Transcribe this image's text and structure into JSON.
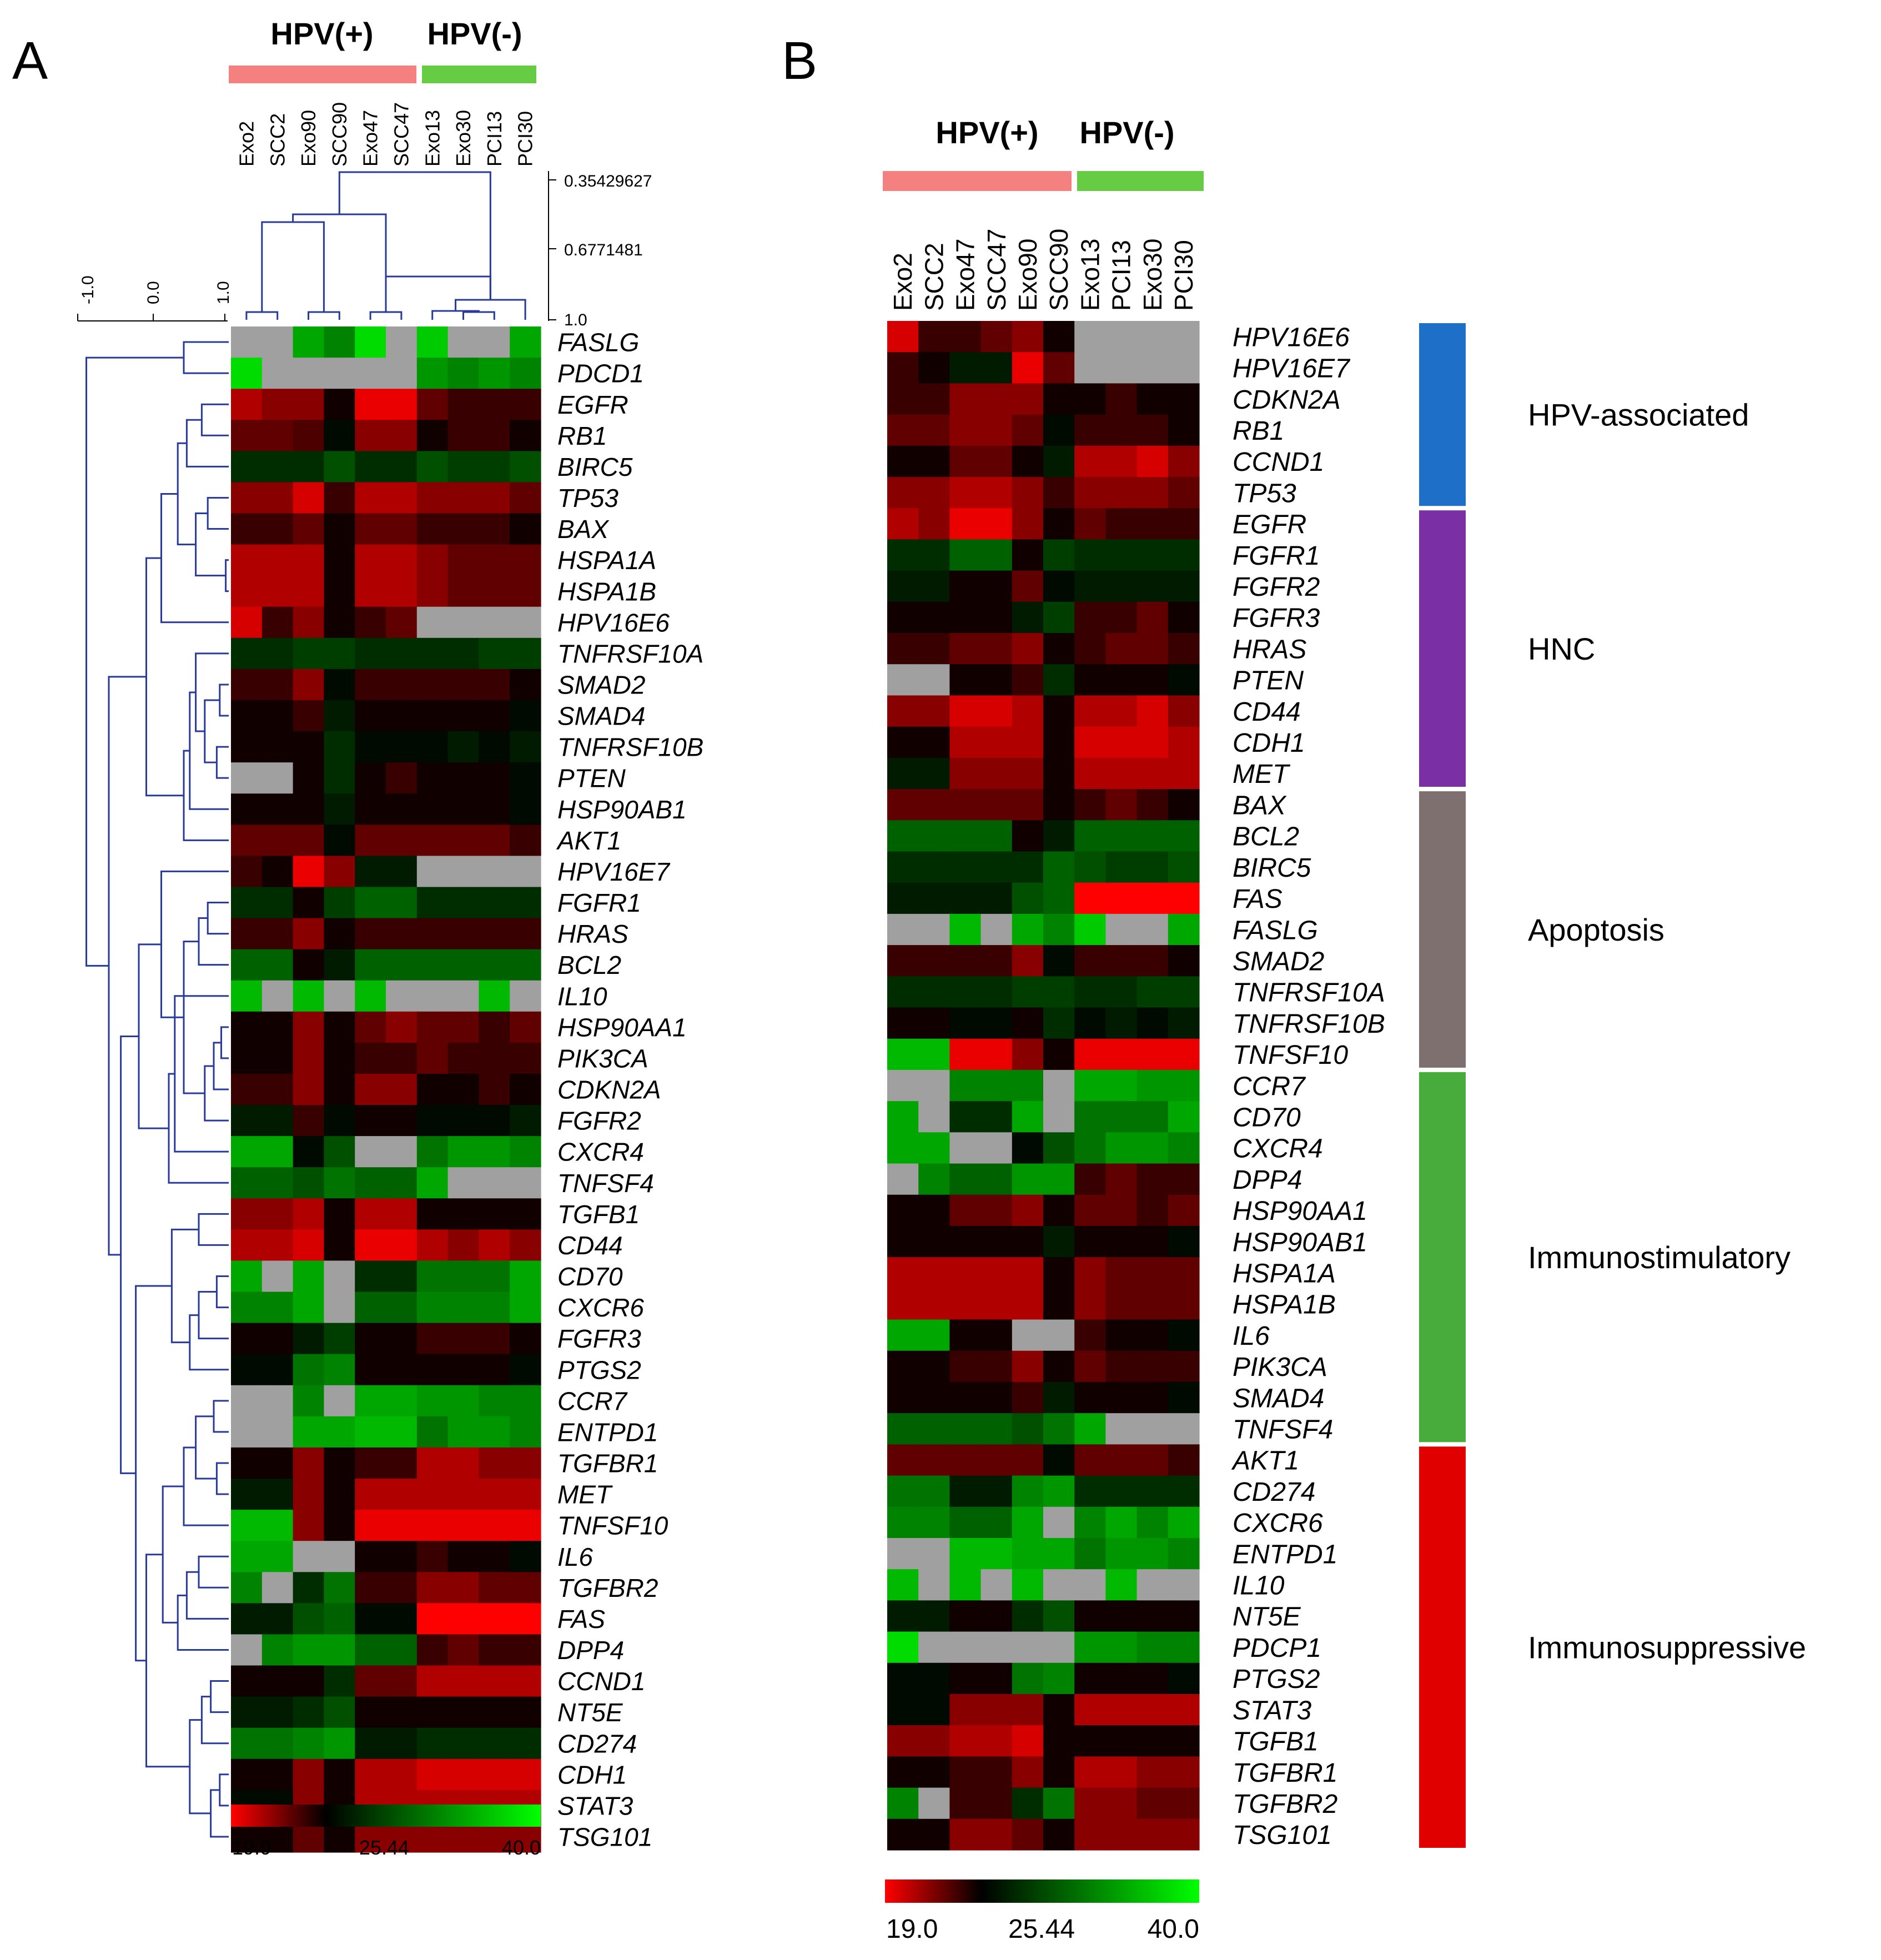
{
  "chart_data": [
    {
      "panel_label": "A",
      "type": "heatmap",
      "group_labels": [
        "HPV(+)",
        "HPV(-)"
      ],
      "group_colors": [
        "#f58080",
        "#66cc44"
      ],
      "group_sizes": [
        6,
        4
      ],
      "columns": [
        "Exo2",
        "SCC2",
        "Exo90",
        "SCC90",
        "Exo47",
        "SCC47",
        "Exo13",
        "Exo30",
        "PCI13",
        "PCI30"
      ],
      "rows": [
        "FASLG",
        "PDCD1",
        "EGFR",
        "RB1",
        "BIRC5",
        "TP53",
        "BAX",
        "HSPA1A",
        "HSPA1B",
        "HPV16E6",
        "TNFRSF10A",
        "SMAD2",
        "SMAD4",
        "TNFRSF10B",
        "PTEN",
        "HSP90AB1",
        "AKT1",
        "HPV16E7",
        "FGFR1",
        "HRAS",
        "BCL2",
        "IL10",
        "HSP90AA1",
        "PIK3CA",
        "CDKN2A",
        "FGFR2",
        "CXCR4",
        "TNFSF4",
        "TGFB1",
        "CD44",
        "CD70",
        "CXCR6",
        "FGFR3",
        "PTGS2",
        "CCR7",
        "ENTPD1",
        "TGFBR1",
        "MET",
        "TNFSF10",
        "IL6",
        "TGFBR2",
        "FAS",
        "DPP4",
        "CCND1",
        "NT5E",
        "CD274",
        "CDH1",
        "STAT3",
        "TSG101"
      ],
      "values": [
        [
          null,
          null,
          35,
          33,
          38,
          null,
          37,
          null,
          null,
          35
        ],
        [
          38,
          null,
          null,
          null,
          null,
          null,
          34,
          33,
          34,
          33
        ],
        [
          21,
          22,
          22,
          25,
          19.5,
          19.5,
          23,
          24,
          24,
          24
        ],
        [
          23,
          23,
          23.5,
          26,
          22,
          22,
          25,
          24,
          24,
          25
        ],
        [
          28,
          28,
          28,
          30,
          28,
          28,
          30,
          29,
          29,
          30
        ],
        [
          22,
          22,
          20,
          24,
          21,
          21,
          22,
          22,
          22,
          23
        ],
        [
          24,
          24,
          23,
          25,
          23,
          23,
          24,
          24,
          24,
          25
        ],
        [
          21,
          21,
          21,
          25,
          21,
          21,
          22,
          23,
          23,
          23
        ],
        [
          21,
          21,
          21,
          25,
          21,
          21,
          22,
          23,
          23,
          23
        ],
        [
          20,
          24,
          22,
          25,
          24,
          23,
          null,
          null,
          null,
          null
        ],
        [
          28,
          28,
          29,
          29,
          28,
          28,
          28,
          28,
          29,
          29
        ],
        [
          24,
          24,
          22,
          26,
          24,
          24,
          24,
          24,
          24,
          25
        ],
        [
          25,
          25,
          24,
          27,
          25,
          25,
          25,
          25,
          25,
          26
        ],
        [
          25,
          25,
          25,
          28,
          26,
          26,
          26,
          27,
          26,
          27
        ],
        [
          null,
          null,
          25,
          28,
          25,
          24,
          25,
          25,
          25,
          26
        ],
        [
          25,
          25,
          25,
          27,
          25,
          25,
          25,
          25,
          25,
          26
        ],
        [
          23,
          23,
          23,
          26,
          23,
          23,
          23,
          23,
          23,
          24
        ],
        [
          24,
          25,
          19.5,
          22,
          27,
          27,
          null,
          null,
          null,
          null
        ],
        [
          28,
          28,
          25,
          29,
          31,
          31,
          28,
          28,
          28,
          28
        ],
        [
          24,
          24,
          22,
          25,
          24,
          24,
          24,
          24,
          24,
          24
        ],
        [
          31,
          31,
          25,
          27,
          31,
          31,
          31,
          31,
          31,
          31
        ],
        [
          36,
          null,
          36,
          null,
          36,
          null,
          null,
          null,
          36,
          null
        ],
        [
          25,
          25,
          22,
          25,
          23,
          22,
          23,
          23,
          24,
          23
        ],
        [
          25,
          25,
          22,
          25,
          24,
          24,
          23,
          24,
          24,
          24
        ],
        [
          24,
          24,
          22,
          25,
          22,
          22,
          25,
          25,
          24,
          25
        ],
        [
          27,
          27,
          24,
          26,
          25,
          25,
          26,
          26,
          26,
          27
        ],
        [
          35,
          35,
          26,
          30,
          null,
          null,
          32,
          34,
          34,
          33
        ],
        [
          31,
          31,
          30,
          32,
          31,
          31,
          35,
          null,
          null,
          null
        ],
        [
          22,
          22,
          21,
          25,
          21,
          21,
          25,
          25,
          25,
          25
        ],
        [
          21,
          21,
          20,
          25,
          19.5,
          19.5,
          21,
          22,
          21,
          22
        ],
        [
          35,
          null,
          35,
          null,
          28,
          28,
          32,
          32,
          32,
          35
        ],
        [
          33,
          33,
          35,
          null,
          31,
          31,
          33,
          33,
          33,
          35
        ],
        [
          25,
          25,
          27,
          29,
          25,
          25,
          24,
          24,
          24,
          25
        ],
        [
          26,
          26,
          32,
          33,
          25,
          25,
          25,
          25,
          25,
          26
        ],
        [
          null,
          null,
          33,
          null,
          35,
          35,
          34,
          34,
          33,
          33
        ],
        [
          null,
          null,
          35,
          35,
          36,
          36,
          32,
          34,
          34,
          33
        ],
        [
          25,
          25,
          22,
          25,
          24,
          24,
          21,
          21,
          22,
          22
        ],
        [
          27,
          27,
          22,
          25,
          21,
          21,
          21,
          21,
          21,
          21
        ],
        [
          36,
          36,
          22,
          25,
          19.5,
          19.5,
          19.5,
          19.5,
          19.5,
          19.5
        ],
        [
          35,
          35,
          null,
          null,
          25,
          25,
          24,
          25,
          25,
          26
        ],
        [
          33,
          null,
          28,
          32,
          24,
          24,
          22,
          22,
          23,
          23
        ],
        [
          27,
          27,
          30,
          31,
          26,
          26,
          19,
          19,
          19,
          19
        ],
        [
          null,
          33,
          34,
          34,
          31,
          31,
          24,
          23,
          24,
          24
        ],
        [
          25,
          25,
          25,
          28,
          23,
          23,
          21,
          21,
          21,
          21
        ],
        [
          27,
          27,
          28,
          30,
          25,
          25,
          25,
          25,
          25,
          25
        ],
        [
          32,
          32,
          33,
          34,
          27,
          27,
          28,
          28,
          28,
          28
        ],
        [
          25,
          25,
          22,
          25,
          21,
          21,
          20,
          20,
          20,
          20
        ],
        [
          26,
          26,
          22,
          25,
          21,
          21,
          21,
          21,
          21,
          21
        ],
        [
          25,
          25,
          23,
          25,
          22,
          22,
          22,
          22,
          22,
          22
        ]
      ],
      "column_distance_ticks": [
        "0.35429627",
        "0.6771481",
        "1.0"
      ],
      "row_distance_ticks": [
        "-1.0",
        "0.0",
        "1.0"
      ],
      "color_scale": {
        "min": 19.0,
        "mid": 25.44,
        "max": 40.0,
        "low_color": "#ff0000",
        "mid_color": "#000000",
        "high_color": "#00ff00",
        "missing_color": "#a0a0a0"
      },
      "color_scale_labels": [
        "19.0",
        "25.44",
        "40.0"
      ]
    },
    {
      "panel_label": "B",
      "type": "heatmap",
      "group_labels": [
        "HPV(+)",
        "HPV(-)"
      ],
      "group_colors": [
        "#f58080",
        "#66cc44"
      ],
      "group_sizes": [
        6,
        4
      ],
      "columns": [
        "Exo2",
        "SCC2",
        "Exo47",
        "SCC47",
        "Exo90",
        "SCC90",
        "Exo13",
        "PCI13",
        "Exo30",
        "PCI30"
      ],
      "rows": [
        "HPV16E6",
        "HPV16E7",
        "CDKN2A",
        "RB1",
        "CCND1",
        "TP53",
        "EGFR",
        "FGFR1",
        "FGFR2",
        "FGFR3",
        "HRAS",
        "PTEN",
        "CD44",
        "CDH1",
        "MET",
        "BAX",
        "BCL2",
        "BIRC5",
        "FAS",
        "FASLG",
        "SMAD2",
        "TNFRSF10A",
        "TNFRSF10B",
        "TNFSF10",
        "CCR7",
        "CD70",
        "CXCR4",
        "DPP4",
        "HSP90AA1",
        "HSP90AB1",
        "HSPA1A",
        "HSPA1B",
        "IL6",
        "PIK3CA",
        "SMAD4",
        "TNFSF4",
        "AKT1",
        "CD274",
        "CXCR6",
        "ENTPD1",
        "IL10",
        "NT5E",
        "PDCP1",
        "PTGS2",
        "STAT3",
        "TGFB1",
        "TGFBR1",
        "TGFBR2",
        "TSG101"
      ],
      "values": [
        [
          20,
          24,
          24,
          23,
          22,
          25,
          null,
          null,
          null,
          null
        ],
        [
          24,
          25,
          27,
          27,
          19.5,
          23,
          null,
          null,
          null,
          null
        ],
        [
          24,
          24,
          22,
          22,
          22,
          25,
          25,
          24,
          25,
          25
        ],
        [
          23,
          23,
          22,
          22,
          23,
          26,
          24,
          24,
          24,
          25
        ],
        [
          25,
          25,
          23,
          23,
          25,
          27,
          21,
          21,
          20,
          22
        ],
        [
          22,
          22,
          21,
          21,
          22,
          24,
          22,
          22,
          22,
          23
        ],
        [
          21,
          22,
          19.5,
          19.5,
          22,
          25,
          23,
          24,
          24,
          24
        ],
        [
          28,
          28,
          31,
          31,
          25,
          29,
          28,
          28,
          28,
          28
        ],
        [
          27,
          27,
          25,
          25,
          23,
          26,
          27,
          27,
          27,
          27
        ],
        [
          25,
          25,
          25,
          25,
          27,
          29,
          24,
          24,
          23,
          25
        ],
        [
          24,
          24,
          23,
          23,
          22,
          25,
          24,
          23,
          23,
          24
        ],
        [
          null,
          null,
          25,
          25,
          24,
          28,
          25,
          25,
          25,
          26
        ],
        [
          22,
          22,
          20,
          20,
          21,
          25,
          21,
          21,
          20,
          22
        ],
        [
          25,
          25,
          21,
          21,
          21,
          25,
          20,
          20,
          20,
          21
        ],
        [
          27,
          27,
          22,
          22,
          22,
          25,
          21,
          21,
          21,
          21
        ],
        [
          23,
          23,
          23,
          23,
          23,
          25,
          24,
          23,
          24,
          25
        ],
        [
          31,
          31,
          31,
          31,
          25,
          27,
          31,
          31,
          31,
          31
        ],
        [
          28,
          28,
          28,
          28,
          28,
          31,
          30,
          29,
          29,
          30
        ],
        [
          27,
          27,
          27,
          27,
          30,
          31,
          19,
          19,
          19,
          19
        ],
        [
          null,
          null,
          36,
          null,
          35,
          33,
          37,
          null,
          null,
          35
        ],
        [
          24,
          24,
          24,
          24,
          22,
          26,
          24,
          24,
          24,
          25
        ],
        [
          28,
          28,
          28,
          28,
          29,
          29,
          28,
          28,
          29,
          29
        ],
        [
          25,
          25,
          26,
          26,
          25,
          28,
          26,
          27,
          26,
          27
        ],
        [
          36,
          36,
          19.5,
          19.5,
          22,
          25,
          19.5,
          19.5,
          19.5,
          19.5
        ],
        [
          null,
          null,
          33,
          33,
          33,
          null,
          35,
          35,
          34,
          34
        ],
        [
          35,
          null,
          28,
          28,
          35,
          null,
          32,
          32,
          32,
          35
        ],
        [
          35,
          35,
          null,
          null,
          26,
          30,
          32,
          34,
          34,
          33
        ],
        [
          null,
          33,
          31,
          31,
          34,
          34,
          24,
          23,
          24,
          24
        ],
        [
          25,
          25,
          23,
          23,
          22,
          25,
          23,
          23,
          24,
          23
        ],
        [
          25,
          25,
          25,
          25,
          25,
          27,
          25,
          25,
          25,
          26
        ],
        [
          21,
          21,
          21,
          21,
          21,
          25,
          22,
          23,
          23,
          23
        ],
        [
          21,
          21,
          21,
          21,
          21,
          25,
          22,
          23,
          23,
          23
        ],
        [
          35,
          35,
          25,
          25,
          null,
          null,
          24,
          25,
          25,
          26
        ],
        [
          25,
          25,
          24,
          24,
          22,
          25,
          23,
          24,
          24,
          24
        ],
        [
          25,
          25,
          25,
          25,
          24,
          27,
          25,
          25,
          25,
          26
        ],
        [
          31,
          31,
          31,
          31,
          30,
          32,
          35,
          null,
          null,
          null
        ],
        [
          23,
          23,
          23,
          23,
          23,
          26,
          23,
          23,
          23,
          24
        ],
        [
          32,
          32,
          27,
          27,
          33,
          34,
          28,
          28,
          28,
          28
        ],
        [
          33,
          33,
          31,
          31,
          35,
          null,
          33,
          35,
          33,
          35
        ],
        [
          null,
          null,
          36,
          36,
          35,
          35,
          32,
          34,
          34,
          33
        ],
        [
          36,
          null,
          36,
          null,
          36,
          null,
          null,
          36,
          null,
          null
        ],
        [
          27,
          27,
          25,
          25,
          28,
          30,
          25,
          25,
          25,
          25
        ],
        [
          38,
          null,
          null,
          null,
          null,
          null,
          34,
          34,
          33,
          33
        ],
        [
          26,
          26,
          25,
          25,
          32,
          33,
          25,
          25,
          25,
          26
        ],
        [
          26,
          26,
          22,
          22,
          22,
          25,
          21,
          21,
          21,
          21
        ],
        [
          22,
          22,
          21,
          21,
          20,
          25,
          25,
          25,
          25,
          25
        ],
        [
          25,
          25,
          24,
          24,
          22,
          25,
          21,
          21,
          22,
          22
        ],
        [
          33,
          null,
          24,
          24,
          28,
          32,
          22,
          22,
          23,
          23
        ],
        [
          25,
          25,
          22,
          22,
          23,
          25,
          22,
          22,
          22,
          22
        ]
      ],
      "categories": [
        {
          "name": "HPV-associated",
          "color": "#1e6fc8",
          "rows": 6
        },
        {
          "name": "HNC",
          "color": "#7b2fa5",
          "rows": 9
        },
        {
          "name": "Apoptosis",
          "color": "#7f7070",
          "rows": 9
        },
        {
          "name": "Immunostimulatory",
          "color": "#48ac3c",
          "rows": 12
        },
        {
          "name": "Immunosuppressive",
          "color": "#e00000",
          "rows": 13
        }
      ],
      "color_scale": {
        "min": 19.0,
        "mid": 25.44,
        "max": 40.0,
        "low_color": "#ff0000",
        "mid_color": "#000000",
        "high_color": "#00ff00",
        "missing_color": "#a0a0a0"
      },
      "color_scale_labels": [
        "19.0",
        "25.44",
        "40.0"
      ]
    }
  ]
}
